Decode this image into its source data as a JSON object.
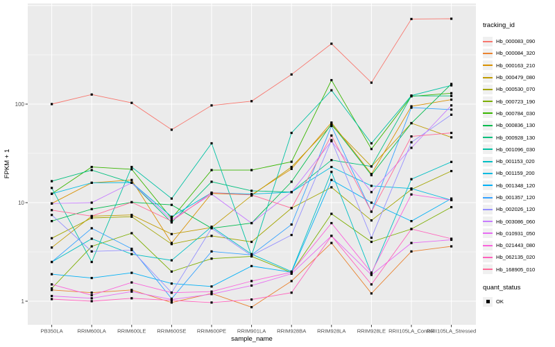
{
  "figure": {
    "background": "#ffffff",
    "panel_background": "#ebebeb",
    "grid_color": "#ffffff",
    "axis_text_color": "#4d4d4d",
    "marker_color": "#000000"
  },
  "legend": {
    "tracking_title": "tracking_id",
    "quant_title": "quant_status",
    "quant_items": [
      {
        "label": "OK",
        "marker": "black-square"
      }
    ]
  },
  "chart_data": {
    "type": "line",
    "title": "",
    "xlabel": "sample_name",
    "ylabel": "FPKM + 1",
    "y_scale": "log10",
    "y_ticks": [
      1,
      10,
      100
    ],
    "ylim": [
      0.85,
      1100
    ],
    "grid": true,
    "legend_position": "right",
    "marker": "black-square",
    "categories": [
      "PB350LA",
      "RRIM600LA",
      "RRIM600LE",
      "RRIM600SE",
      "RRIM600PE",
      "RRIM901LA",
      "RRIM928BA",
      "RRIM928LA",
      "RRIM928LE",
      "RRII105LA_Control",
      "RRII105LA_Stressed"
    ],
    "series": [
      {
        "name": "Hb_000083_090",
        "color": "#F8766D",
        "values": [
          100,
          125,
          103,
          55,
          97,
          107,
          200,
          410,
          165,
          730,
          735
        ]
      },
      {
        "name": "Hb_000084_320",
        "color": "#EA8331",
        "values": [
          1.3,
          1.22,
          1.3,
          0.97,
          1.2,
          0.87,
          1.6,
          3.9,
          1.2,
          3.2,
          3.6
        ]
      },
      {
        "name": "Hb_000163_210",
        "color": "#D89000",
        "values": [
          9.8,
          15.9,
          17,
          3.9,
          12.4,
          12,
          22,
          65,
          19.5,
          95,
          111
        ]
      },
      {
        "name": "Hb_000479_080",
        "color": "#C09B00",
        "values": [
          3.5,
          7.3,
          7.5,
          4.8,
          5.6,
          11.8,
          23,
          61,
          23.3,
          64,
          46
        ]
      },
      {
        "name": "Hb_000530_070",
        "color": "#A3A500",
        "values": [
          4.35,
          7,
          7.2,
          3.8,
          4.6,
          4,
          8.8,
          14.3,
          6.6,
          13.6,
          20.9
        ]
      },
      {
        "name": "Hb_000723_190",
        "color": "#7CAE00",
        "values": [
          1.35,
          3.6,
          4.9,
          2,
          2.7,
          2.85,
          1.95,
          7.7,
          4,
          5.4,
          9
        ]
      },
      {
        "name": "Hb_000784_030",
        "color": "#39B600",
        "values": [
          12.3,
          23,
          21.8,
          6.9,
          21.4,
          21.4,
          26,
          175,
          35,
          120,
          129
        ]
      },
      {
        "name": "Hb_000836_130",
        "color": "#00BB4E",
        "values": [
          6.5,
          8.6,
          10.1,
          9.5,
          5.5,
          6.2,
          16.3,
          63,
          19,
          64,
          160
        ]
      },
      {
        "name": "Hb_000928_130",
        "color": "#00BF7D",
        "values": [
          16.5,
          21.4,
          15.9,
          6.3,
          16.3,
          13.2,
          12.8,
          27,
          23.3,
          121,
          121
        ]
      },
      {
        "name": "Hb_001096_030",
        "color": "#00C1A3",
        "values": [
          14.1,
          2.5,
          23,
          11,
          40,
          2.9,
          51,
          138,
          40,
          122,
          155
        ]
      },
      {
        "name": "Hb_001153_020",
        "color": "#00BFC4",
        "values": [
          2.5,
          4.3,
          3,
          2.6,
          5.7,
          3,
          2,
          20.5,
          1.9,
          17.3,
          25.9
        ]
      },
      {
        "name": "Hb_001159_200",
        "color": "#00BAE0",
        "values": [
          12.3,
          15.9,
          16,
          7.2,
          12.6,
          12.2,
          12.8,
          23,
          14.8,
          13.9,
          10.6
        ]
      },
      {
        "name": "Hb_001348_120",
        "color": "#00B0F6",
        "values": [
          1.88,
          1.72,
          1.94,
          1.51,
          1.41,
          2.27,
          1.97,
          17,
          10,
          6.5,
          11
        ]
      },
      {
        "name": "Hb_001357_120",
        "color": "#35A2FF",
        "values": [
          2.5,
          5.5,
          3.4,
          1.06,
          3.2,
          2.95,
          6,
          60,
          8.1,
          92,
          88
        ]
      },
      {
        "name": "Hb_002026_120",
        "color": "#9590FF",
        "values": [
          7.5,
          3.2,
          3.3,
          1.22,
          5.5,
          2.9,
          4.7,
          43,
          4.4,
          41,
          78
        ]
      },
      {
        "name": "Hb_003086_060",
        "color": "#C77CFF",
        "values": [
          9.8,
          10,
          15.9,
          6.7,
          12.2,
          6.2,
          12.8,
          42,
          12.8,
          36,
          97
        ]
      },
      {
        "name": "Hb_010931_050",
        "color": "#E76BF3",
        "values": [
          1.13,
          1.07,
          1.25,
          1.04,
          1.18,
          1.44,
          1.9,
          4.6,
          1.85,
          3.9,
          4.2
        ]
      },
      {
        "name": "Hb_021443_080",
        "color": "#FA62DB",
        "values": [
          1.48,
          1.15,
          1.55,
          1.22,
          1.25,
          1.6,
          1.97,
          6.2,
          1.95,
          12.1,
          10.6
        ]
      },
      {
        "name": "Hb_062135_020",
        "color": "#FF62BC",
        "values": [
          1.05,
          1,
          1.07,
          1.02,
          0.97,
          1.04,
          1.22,
          4.6,
          1.48,
          5.4,
          4.3
        ]
      },
      {
        "name": "Hb_168905_010",
        "color": "#FF6A98",
        "values": [
          8.4,
          7.3,
          10.1,
          6.5,
          12.6,
          12,
          8.8,
          48,
          8.1,
          47,
          51
        ]
      }
    ]
  }
}
